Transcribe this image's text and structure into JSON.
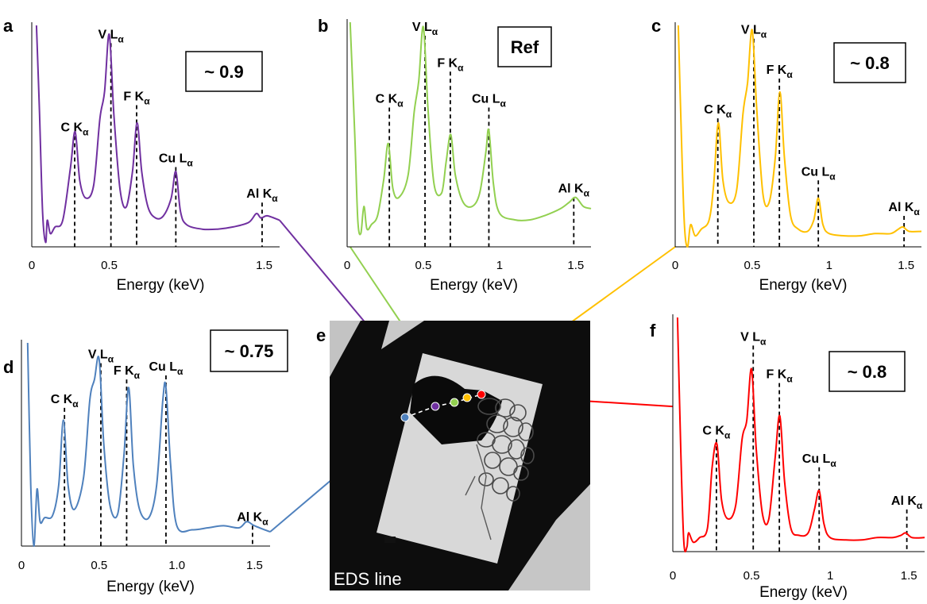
{
  "chart_data": [
    {
      "panel": "a",
      "type": "line",
      "color": "#7030a0",
      "ratio": "~ 0.9",
      "xlabel": "Energy (keV)",
      "xlim": [
        0,
        1.6
      ],
      "ylim": [
        0,
        1
      ],
      "xticks": [
        "0",
        "0.5",
        "1.5"
      ],
      "series": [
        {
          "x": [
            0.03,
            0.05,
            0.07,
            0.09,
            0.1,
            0.12,
            0.15,
            0.2,
            0.25,
            0.28,
            0.31,
            0.35,
            0.4,
            0.44,
            0.47,
            0.5,
            0.53,
            0.57,
            0.61,
            0.65,
            0.68,
            0.71,
            0.75,
            0.8,
            0.85,
            0.9,
            0.93,
            0.96,
            1.0,
            1.1,
            1.2,
            1.3,
            1.4,
            1.45,
            1.48,
            1.52,
            1.6
          ],
          "y": [
            1.0,
            0.6,
            0.15,
            0.02,
            0.12,
            0.06,
            0.09,
            0.12,
            0.36,
            0.52,
            0.3,
            0.22,
            0.28,
            0.58,
            0.7,
            0.96,
            0.6,
            0.26,
            0.18,
            0.34,
            0.56,
            0.34,
            0.18,
            0.13,
            0.14,
            0.22,
            0.34,
            0.16,
            0.1,
            0.08,
            0.08,
            0.09,
            0.11,
            0.15,
            0.13,
            0.14,
            0.12
          ]
        }
      ],
      "peaks": [
        {
          "name": "C K",
          "sub": "α",
          "energy": 0.277,
          "h": 0.5
        },
        {
          "name": "V L",
          "sub": "α",
          "energy": 0.511,
          "h": 0.92
        },
        {
          "name": "F K",
          "sub": "α",
          "energy": 0.677,
          "h": 0.64
        },
        {
          "name": "Cu L",
          "sub": "α",
          "energy": 0.93,
          "h": 0.36
        },
        {
          "name": "Al K",
          "sub": "α",
          "energy": 1.487,
          "h": 0.2
        }
      ]
    },
    {
      "panel": "b",
      "type": "line",
      "color": "#92d050",
      "ratio": "Ref",
      "xlabel": "Energy (keV)",
      "xlim": [
        0,
        1.6
      ],
      "ylim": [
        0,
        1
      ],
      "xticks": [
        "0",
        "0.5",
        "1",
        "1.5"
      ],
      "series": [
        {
          "x": [
            0.02,
            0.05,
            0.07,
            0.09,
            0.11,
            0.13,
            0.16,
            0.2,
            0.24,
            0.27,
            0.3,
            0.34,
            0.4,
            0.44,
            0.47,
            0.5,
            0.53,
            0.57,
            0.62,
            0.65,
            0.68,
            0.71,
            0.76,
            0.82,
            0.87,
            0.91,
            0.93,
            0.96,
            1.0,
            1.1,
            1.2,
            1.3,
            1.4,
            1.46,
            1.5,
            1.55,
            1.6
          ],
          "y": [
            1.0,
            0.5,
            0.12,
            0.06,
            0.18,
            0.08,
            0.1,
            0.14,
            0.3,
            0.46,
            0.26,
            0.22,
            0.32,
            0.6,
            0.74,
            0.98,
            0.62,
            0.28,
            0.24,
            0.38,
            0.5,
            0.32,
            0.2,
            0.18,
            0.24,
            0.42,
            0.52,
            0.28,
            0.15,
            0.12,
            0.12,
            0.14,
            0.17,
            0.2,
            0.22,
            0.18,
            0.17
          ]
        }
      ],
      "peaks": [
        {
          "name": "C K",
          "sub": "α",
          "energy": 0.277,
          "h": 0.62
        },
        {
          "name": "V L",
          "sub": "α",
          "energy": 0.511,
          "h": 0.94
        },
        {
          "name": "F K",
          "sub": "α",
          "energy": 0.677,
          "h": 0.78
        },
        {
          "name": "Cu L",
          "sub": "α",
          "energy": 0.93,
          "h": 0.62
        },
        {
          "name": "Al K",
          "sub": "α",
          "energy": 1.487,
          "h": 0.22
        }
      ]
    },
    {
      "panel": "c",
      "type": "line",
      "color": "#ffc000",
      "ratio": "~ 0.8",
      "xlabel": "Energy (keV)",
      "xlim": [
        0,
        1.6
      ],
      "ylim": [
        0,
        1
      ],
      "xticks": [
        "0",
        "0.5",
        "1",
        "1.5"
      ],
      "series": [
        {
          "x": [
            0.02,
            0.04,
            0.06,
            0.08,
            0.1,
            0.13,
            0.17,
            0.22,
            0.25,
            0.28,
            0.31,
            0.35,
            0.4,
            0.44,
            0.47,
            0.5,
            0.53,
            0.57,
            0.61,
            0.65,
            0.68,
            0.71,
            0.75,
            0.8,
            0.86,
            0.9,
            0.93,
            0.96,
            1.0,
            1.1,
            1.2,
            1.3,
            1.4,
            1.45,
            1.48,
            1.52,
            1.6
          ],
          "y": [
            1.0,
            0.5,
            0.1,
            0.0,
            0.1,
            0.05,
            0.08,
            0.12,
            0.28,
            0.56,
            0.3,
            0.2,
            0.26,
            0.6,
            0.74,
            0.98,
            0.62,
            0.24,
            0.2,
            0.4,
            0.7,
            0.4,
            0.14,
            0.08,
            0.07,
            0.12,
            0.22,
            0.1,
            0.06,
            0.05,
            0.05,
            0.06,
            0.06,
            0.08,
            0.09,
            0.07,
            0.07
          ]
        }
      ],
      "peaks": [
        {
          "name": "C K",
          "sub": "α",
          "energy": 0.277,
          "h": 0.58
        },
        {
          "name": "V L",
          "sub": "α",
          "energy": 0.511,
          "h": 0.94
        },
        {
          "name": "F K",
          "sub": "α",
          "energy": 0.677,
          "h": 0.76
        },
        {
          "name": "Cu L",
          "sub": "α",
          "energy": 0.93,
          "h": 0.3
        },
        {
          "name": "Al K",
          "sub": "α",
          "energy": 1.487,
          "h": 0.14
        }
      ]
    },
    {
      "panel": "d",
      "type": "line",
      "color": "#4f81bd",
      "ratio": "~ 0.75",
      "xlabel": "Energy (keV)",
      "xlim": [
        0,
        1.6
      ],
      "ylim": [
        0,
        1
      ],
      "xticks": [
        "0",
        "0.5",
        "1.0",
        "1.5"
      ],
      "series": [
        {
          "x": [
            0.04,
            0.06,
            0.08,
            0.1,
            0.12,
            0.15,
            0.2,
            0.24,
            0.27,
            0.3,
            0.34,
            0.4,
            0.44,
            0.47,
            0.5,
            0.53,
            0.57,
            0.62,
            0.66,
            0.69,
            0.72,
            0.76,
            0.82,
            0.87,
            0.91,
            0.93,
            0.96,
            1.0,
            1.1,
            1.2,
            1.3,
            1.4,
            1.45,
            1.5,
            1.6
          ],
          "y": [
            1.0,
            0.3,
            0.0,
            0.28,
            0.12,
            0.14,
            0.15,
            0.3,
            0.62,
            0.3,
            0.18,
            0.34,
            0.72,
            0.82,
            0.92,
            0.5,
            0.2,
            0.16,
            0.45,
            0.78,
            0.4,
            0.18,
            0.14,
            0.3,
            0.72,
            0.78,
            0.4,
            0.1,
            0.08,
            0.09,
            0.1,
            0.09,
            0.12,
            0.1,
            0.07
          ]
        }
      ],
      "peaks": [
        {
          "name": "C K",
          "sub": "α",
          "energy": 0.277,
          "h": 0.68
        },
        {
          "name": "V L",
          "sub": "α",
          "energy": 0.511,
          "h": 0.9
        },
        {
          "name": "F K",
          "sub": "α",
          "energy": 0.677,
          "h": 0.82
        },
        {
          "name": "Cu L",
          "sub": "α",
          "energy": 0.93,
          "h": 0.84
        },
        {
          "name": "Al K",
          "sub": "α",
          "energy": 1.487,
          "h": 0.1
        }
      ]
    },
    {
      "panel": "f",
      "type": "line",
      "color": "#ff0000",
      "ratio": "~ 0.8",
      "xlabel": "Energy (keV)",
      "xlim": [
        0,
        1.6
      ],
      "ylim": [
        0,
        1
      ],
      "xticks": [
        "0",
        "0.5",
        "1",
        "1.5"
      ],
      "series": [
        {
          "x": [
            0.03,
            0.05,
            0.07,
            0.09,
            0.1,
            0.13,
            0.17,
            0.22,
            0.25,
            0.28,
            0.31,
            0.35,
            0.4,
            0.44,
            0.47,
            0.5,
            0.53,
            0.57,
            0.61,
            0.65,
            0.68,
            0.71,
            0.75,
            0.8,
            0.86,
            0.9,
            0.93,
            0.96,
            1.0,
            1.1,
            1.2,
            1.3,
            1.4,
            1.45,
            1.48,
            1.52,
            1.6
          ],
          "y": [
            1.0,
            0.45,
            0.04,
            0.02,
            0.08,
            0.04,
            0.06,
            0.1,
            0.36,
            0.46,
            0.22,
            0.14,
            0.2,
            0.48,
            0.56,
            0.78,
            0.44,
            0.16,
            0.14,
            0.4,
            0.58,
            0.3,
            0.1,
            0.07,
            0.08,
            0.18,
            0.26,
            0.12,
            0.06,
            0.05,
            0.05,
            0.06,
            0.06,
            0.07,
            0.08,
            0.06,
            0.06
          ]
        }
      ],
      "peaks": [
        {
          "name": "C K",
          "sub": "α",
          "energy": 0.277,
          "h": 0.48
        },
        {
          "name": "V L",
          "sub": "α",
          "energy": 0.511,
          "h": 0.88
        },
        {
          "name": "F K",
          "sub": "α",
          "energy": 0.677,
          "h": 0.72
        },
        {
          "name": "Cu L",
          "sub": "α",
          "energy": 0.93,
          "h": 0.36
        },
        {
          "name": "Al K",
          "sub": "α",
          "energy": 1.487,
          "h": 0.18
        }
      ]
    }
  ],
  "image_panel": {
    "panel": "e",
    "label": "EDS line",
    "points": [
      {
        "color": "#4f81bd"
      },
      {
        "color": "#7030a0"
      },
      {
        "color": "#92d050"
      },
      {
        "color": "#ffc000"
      },
      {
        "color": "#ff0000"
      }
    ]
  }
}
